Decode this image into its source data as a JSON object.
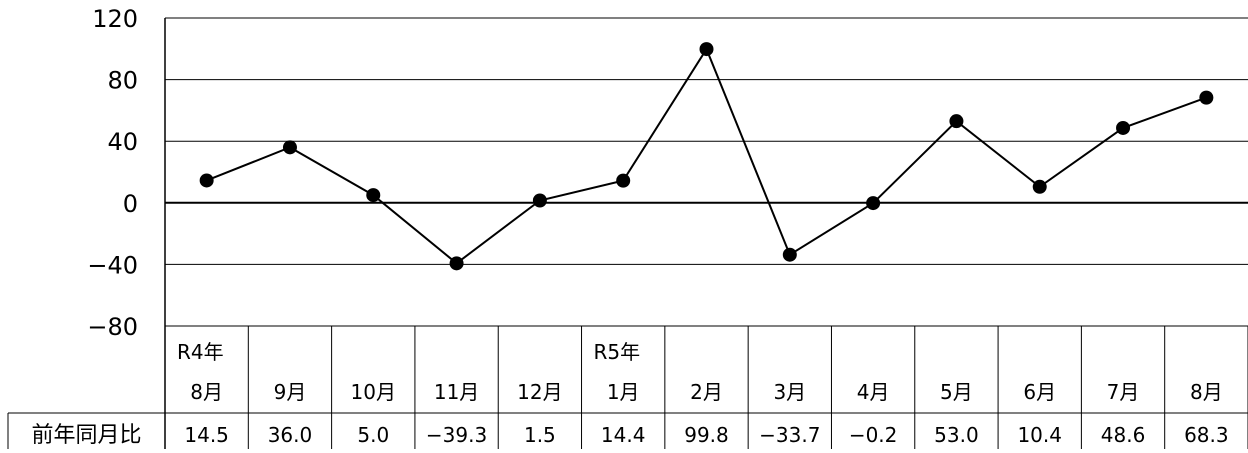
{
  "chart_data": {
    "type": "line",
    "categories": [
      {
        "year": "R4年",
        "month": "8月"
      },
      {
        "year": "",
        "month": "9月"
      },
      {
        "year": "",
        "month": "10月"
      },
      {
        "year": "",
        "month": "11月"
      },
      {
        "year": "",
        "month": "12月"
      },
      {
        "year": "R5年",
        "month": "1月"
      },
      {
        "year": "",
        "month": "2月"
      },
      {
        "year": "",
        "month": "3月"
      },
      {
        "year": "",
        "month": "4月"
      },
      {
        "year": "",
        "month": "5月"
      },
      {
        "year": "",
        "month": "6月"
      },
      {
        "year": "",
        "month": "7月"
      },
      {
        "year": "",
        "month": "8月"
      }
    ],
    "series": [
      {
        "name": "前年同月比",
        "values": [
          14.5,
          36.0,
          5.0,
          -39.3,
          1.5,
          14.4,
          99.8,
          -33.7,
          -0.2,
          53.0,
          10.4,
          48.6,
          68.3
        ],
        "display": [
          "14.5",
          "36.0",
          "5.0",
          "−39.3",
          "1.5",
          "14.4",
          "99.8",
          "−33.7",
          "−0.2",
          "53.0",
          "10.4",
          "48.6",
          "68.3"
        ]
      }
    ],
    "ylim": [
      -80,
      120
    ],
    "yticks": [
      120,
      80,
      40,
      0,
      -40,
      -80
    ],
    "ytick_labels": [
      "120",
      "80",
      "40",
      "0",
      "−40",
      "−80"
    ],
    "grid": true,
    "data_table": true,
    "line_color": "#000000",
    "marker": "filled-circle"
  }
}
